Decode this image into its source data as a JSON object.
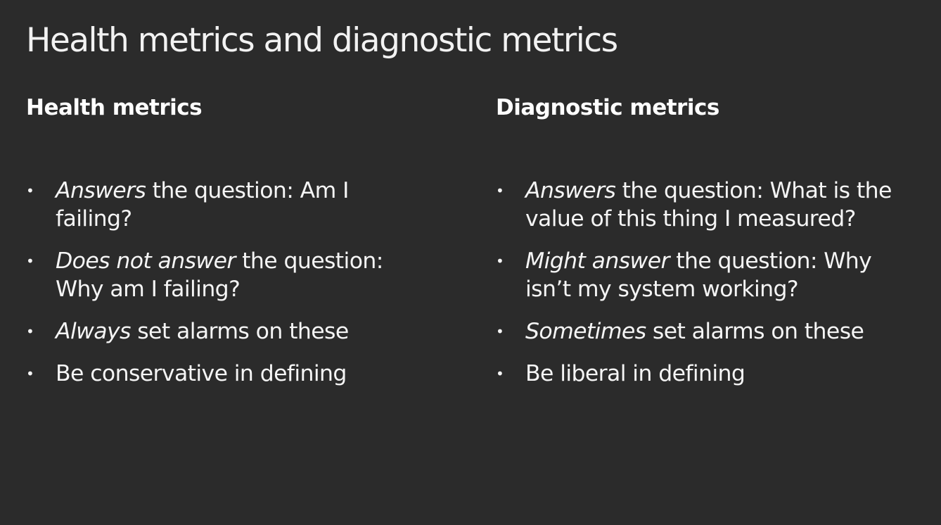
{
  "slide": {
    "title": "Health metrics and diagnostic metrics",
    "columns": [
      {
        "heading": "Health metrics",
        "bullets": [
          {
            "emphasis": "Answers",
            "text": " the question: Am I failing?"
          },
          {
            "emphasis": "Does not answer",
            "text": " the question: Why am I failing?"
          },
          {
            "emphasis": "Always",
            "text": " set alarms on these"
          },
          {
            "emphasis": "",
            "text": "Be conservative in defining"
          }
        ]
      },
      {
        "heading": "Diagnostic metrics",
        "bullets": [
          {
            "emphasis": "Answers",
            "text": " the question: What is the value of this thing I measured?"
          },
          {
            "emphasis": "Might answer",
            "text": " the question: Why isn’t my system working?"
          },
          {
            "emphasis": "Sometimes",
            "text": " set alarms on these"
          },
          {
            "emphasis": "",
            "text": "Be liberal in defining"
          }
        ]
      }
    ],
    "bullet_glyph": "•",
    "colors": {
      "background": "#2b2b2b",
      "text": "#ffffff"
    }
  }
}
